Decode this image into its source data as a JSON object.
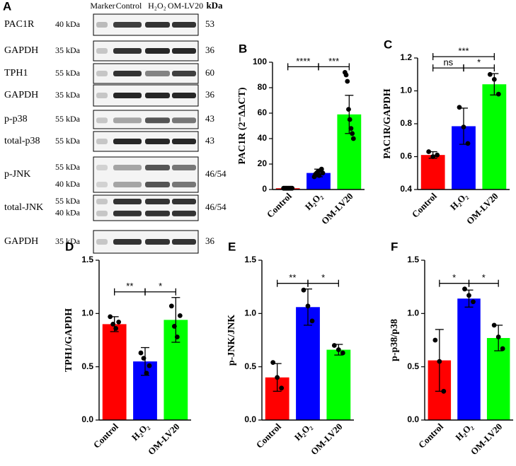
{
  "blot": {
    "panel": "A",
    "headers": [
      "Marker",
      "Control",
      "H₂O₂",
      "OM-LV20",
      "kDa"
    ],
    "rows": [
      {
        "name": "PAC1R",
        "markers": [
          "40 kDa"
        ],
        "kda": "53"
      },
      {
        "name": "GAPDH",
        "markers": [
          "35 kDa"
        ],
        "kda": "36"
      },
      {
        "name": "TPH1",
        "markers": [
          "55 kDa"
        ],
        "kda": "60"
      },
      {
        "name": "GAPDH",
        "markers": [
          "35 kDa"
        ],
        "kda": "36"
      },
      {
        "name": "p-p38",
        "markers": [
          "55 kDa"
        ],
        "kda": "43"
      },
      {
        "name": "total-p38",
        "markers": [
          "55 kDa"
        ],
        "kda": "43"
      },
      {
        "name": "p-JNK",
        "markers": [
          "55 kDa",
          "40 kDa"
        ],
        "kda": "46/54"
      },
      {
        "name": "total-JNK",
        "markers": [
          "55 kDa",
          "40 kDa"
        ],
        "kda": "46/54"
      },
      {
        "name": "GAPDH",
        "markers": [
          "35 kDa"
        ],
        "kda": "36"
      }
    ]
  },
  "chart_data": [
    {
      "type": "bar",
      "panel": "B",
      "y_label": "PAC1R (2⁻ΔΔCT)",
      "categories": [
        "Control",
        "H₂O₂",
        "OM-LV20"
      ],
      "colors": [
        "#ff0000",
        "#0000ff",
        "#00ff00"
      ],
      "values": [
        1,
        13,
        59
      ],
      "errors": [
        0.5,
        3,
        15
      ],
      "points": [
        [
          1,
          1,
          1,
          1,
          1,
          1,
          1,
          1
        ],
        [
          10,
          12,
          13,
          14,
          11,
          15,
          16,
          13
        ],
        [
          92,
          90,
          85,
          63,
          55,
          48,
          44,
          40
        ]
      ],
      "ylim": [
        0,
        100
      ],
      "yticks": [
        0,
        20,
        40,
        60,
        80,
        100
      ],
      "annotations": [
        {
          "text": "****",
          "from": 0,
          "to": 1
        },
        {
          "text": "***",
          "from": 1,
          "to": 2
        }
      ]
    },
    {
      "type": "bar",
      "panel": "C",
      "y_label": "PAC1R/GAPDH",
      "categories": [
        "Control",
        "H₂O₂",
        "OM-LV20"
      ],
      "colors": [
        "#ff0000",
        "#0000ff",
        "#00ff00"
      ],
      "values": [
        0.61,
        0.785,
        1.04
      ],
      "errors": [
        0.02,
        0.11,
        0.065
      ],
      "points": [
        [
          0.63,
          0.6,
          0.61
        ],
        [
          0.9,
          0.78,
          0.68
        ],
        [
          1.1,
          1.07,
          0.98
        ]
      ],
      "ylim": [
        0.4,
        1.2
      ],
      "yticks": [
        0.4,
        0.6,
        0.8,
        {
          "value": 1.0,
          "label": "1.0"
        },
        1.2
      ],
      "annotations": [
        {
          "text": "ns",
          "from": 0,
          "to": 1
        },
        {
          "text": "*",
          "from": 1,
          "to": 2
        },
        {
          "text": "***",
          "from": 0,
          "to": 2
        }
      ]
    },
    {
      "type": "bar",
      "panel": "D",
      "y_label": "TPH1/GAPDH",
      "categories": [
        "Control",
        "H₂O₂",
        "OM-LV20"
      ],
      "colors": [
        "#ff0000",
        "#0000ff",
        "#00ff00"
      ],
      "values": [
        0.9,
        0.55,
        0.94
      ],
      "errors": [
        0.07,
        0.13,
        0.21
      ],
      "points": [
        [
          0.97,
          0.9,
          0.86,
          0.92
        ],
        [
          0.63,
          0.58,
          0.44,
          0.51
        ],
        [
          1.07,
          0.88,
          0.78,
          0.98
        ]
      ],
      "ylim": [
        0,
        1.5
      ],
      "yticks": [
        {
          "value": 0,
          "label": "0.0"
        },
        0.5,
        {
          "value": 1.0,
          "label": "1.0"
        },
        1.5
      ],
      "annotations": [
        {
          "text": "**",
          "from": 0,
          "to": 1
        },
        {
          "text": "*",
          "from": 1,
          "to": 2
        }
      ]
    },
    {
      "type": "bar",
      "panel": "E",
      "y_label": "p-JNK/JNK",
      "categories": [
        "Control",
        "H₂O₂",
        "OM-LV20"
      ],
      "colors": [
        "#ff0000",
        "#0000ff",
        "#00ff00"
      ],
      "values": [
        0.4,
        1.06,
        0.66
      ],
      "errors": [
        0.13,
        0.17,
        0.05
      ],
      "points": [
        [
          0.54,
          0.4,
          0.3
        ],
        [
          1.22,
          1.07,
          0.93
        ],
        [
          0.7,
          0.66,
          0.63
        ]
      ],
      "ylim": [
        0,
        1.5
      ],
      "yticks": [
        {
          "value": 0,
          "label": "0.0"
        },
        0.5,
        {
          "value": 1.0,
          "label": "1.0"
        },
        1.5
      ],
      "annotations": [
        {
          "text": "**",
          "from": 0,
          "to": 1
        },
        {
          "text": "*",
          "from": 1,
          "to": 2
        }
      ]
    },
    {
      "type": "bar",
      "panel": "F",
      "y_label": "p-p38/p38",
      "categories": [
        "Control",
        "H₂O₂",
        "OM-LV20"
      ],
      "colors": [
        "#ff0000",
        "#0000ff",
        "#00ff00"
      ],
      "values": [
        0.56,
        1.14,
        0.77
      ],
      "errors": [
        0.29,
        0.08,
        0.12
      ],
      "points": [
        [
          0.75,
          0.55,
          0.27
        ],
        [
          1.23,
          1.17,
          1.11
        ],
        [
          0.89,
          0.78,
          0.67
        ]
      ],
      "ylim": [
        0,
        1.5
      ],
      "yticks": [
        {
          "value": 0,
          "label": "0.0"
        },
        0.5,
        {
          "value": 1.0,
          "label": "1.0"
        },
        1.5
      ],
      "annotations": [
        {
          "text": "*",
          "from": 0,
          "to": 1
        },
        {
          "text": "*",
          "from": 1,
          "to": 2
        }
      ]
    }
  ]
}
